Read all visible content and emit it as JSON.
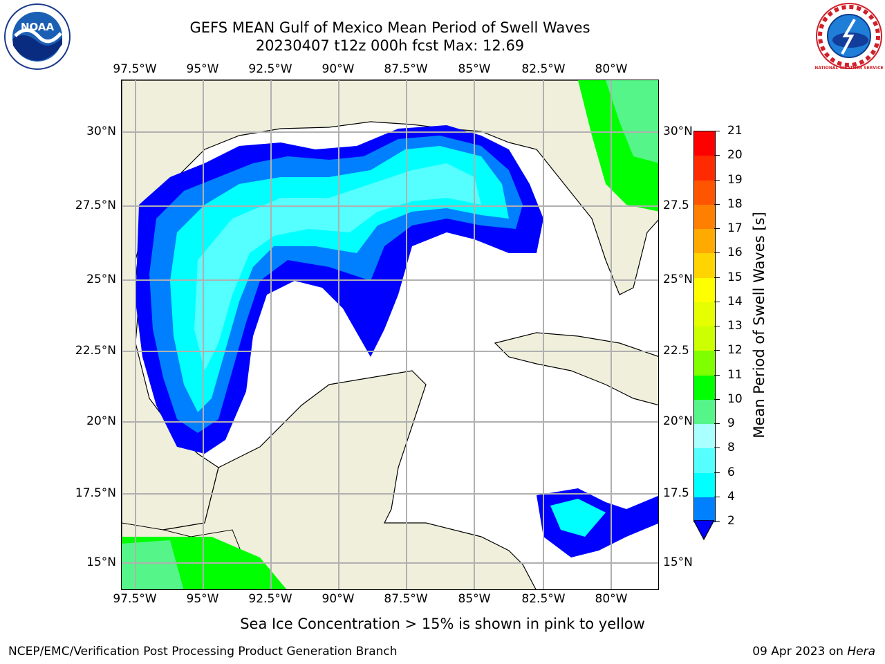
{
  "title_line1": "GEFS MEAN Gulf of Mexico Mean Period of Swell Waves",
  "title_line2": "20230407 t12z 000h fcst   Max: 12.69",
  "lon_ticks": [
    "97.5°W",
    "95°W",
    "92.5°W",
    "90°W",
    "87.5°W",
    "85°W",
    "82.5°W",
    "80°W"
  ],
  "lat_ticks_left": [
    "30°N",
    "27.5°N",
    "25°N",
    "22.5°N",
    "20°N",
    "17.5°N",
    "15°N"
  ],
  "lat_ticks_right": [
    "30°N",
    "27.5",
    "25°N",
    "22.5",
    "20°N",
    "17.5",
    "15°N"
  ],
  "colorbar": {
    "title": "Mean Period of Swell Waves [s]",
    "labels": [
      "21",
      "20",
      "19",
      "18",
      "17",
      "16",
      "15",
      "14",
      "13",
      "12",
      "11",
      "10",
      "9",
      "8",
      "6",
      "4",
      "2"
    ],
    "colors": [
      "#ff0000",
      "#ff2a00",
      "#ff5500",
      "#ff8000",
      "#ffaa00",
      "#ffd400",
      "#ffff00",
      "#e6ff00",
      "#ccff00",
      "#80ff00",
      "#00ff00",
      "#55f58a",
      "#aaffff",
      "#55ffff",
      "#00ffff",
      "#0080ff",
      "#0000ff"
    ]
  },
  "footer_note": "Sea Ice Concentration > 15% is shown in pink to yellow",
  "credit": "NCEP/EMC/Verification Post Processing Product Generation Branch",
  "date_prefix": "09 Apr 2023 on ",
  "date_machine": "Hera",
  "logo_left": "noaa-logo",
  "logo_right": "nws-logo",
  "logo_left_text": "NOAA",
  "logo_right_ring_text": "NATIONAL WEATHER SERVICE",
  "colors": {
    "land": "#efefdc",
    "grid": "#b0b0b0",
    "coast": "#000000"
  }
}
